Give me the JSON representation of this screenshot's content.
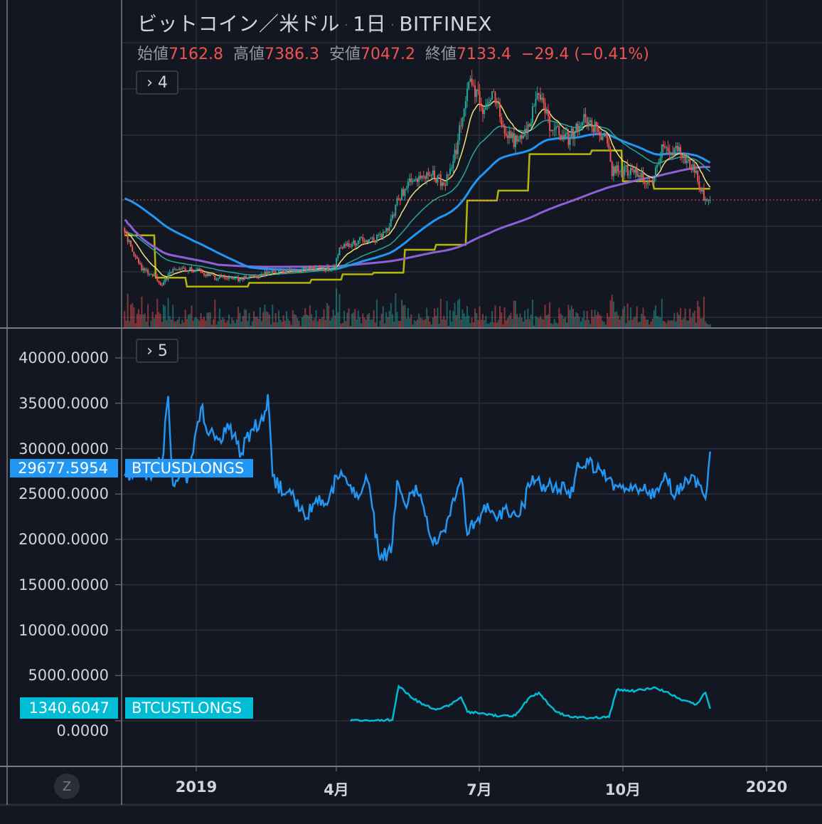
{
  "header": {
    "symbol": "ビットコイン／米ドル",
    "interval": "1日",
    "exchange": "BITFINEX",
    "open_label": "始値",
    "open": "7162.8",
    "high_label": "高値",
    "high": "7386.3",
    "low_label": "安値",
    "low": "7047.2",
    "close_label": "終値",
    "close": "7133.4",
    "change": "−29.4 (−0.41%)"
  },
  "panes": {
    "price_collapse": "› 4",
    "longs_collapse": "› 5"
  },
  "colors": {
    "background": "#131722",
    "up": "#26a69a",
    "down": "#ef5350",
    "ma20": "#f3e27a",
    "ma50": "#26a69a",
    "ma100": "#2196f3",
    "ma200": "#8e5fd6",
    "stepline": "#b5b50a",
    "btcusdlongs": "#2196f3",
    "btcustlongs": "#00bcd4"
  },
  "time_axis": {
    "labels": [
      "2019",
      "4月",
      "7月",
      "10月",
      "2020"
    ],
    "zoom_button": "Z"
  },
  "chart_data": [
    {
      "type": "candlestick",
      "title": "ビットコイン／米ドル · 1日 · BITFINEX",
      "last_close": 7133.4,
      "overlays": [
        "MA short (yellow)",
        "MA (teal)",
        "MA (blue)",
        "MA long (purple)",
        "step line (olive)",
        "volume"
      ],
      "closes": [
        [
          "2018-11-16",
          5800
        ],
        [
          "2018-11-20",
          4790
        ],
        [
          "2018-11-26",
          3940
        ],
        [
          "2018-12-03",
          3600
        ],
        [
          "2018-12-10",
          3100
        ],
        [
          "2018-12-17",
          3830
        ],
        [
          "2018-12-24",
          3830
        ],
        [
          "2019-01-01",
          3770
        ],
        [
          "2019-01-12",
          3430
        ],
        [
          "2019-01-26",
          3360
        ],
        [
          "2019-02-08",
          3430
        ],
        [
          "2019-02-18",
          3700
        ],
        [
          "2019-03-03",
          3770
        ],
        [
          "2019-03-17",
          3830
        ],
        [
          "2019-03-31",
          3940
        ],
        [
          "2019-04-03",
          4960
        ],
        [
          "2019-04-18",
          5200
        ],
        [
          "2019-04-27",
          5300
        ],
        [
          "2019-05-04",
          5800
        ],
        [
          "2019-05-11",
          7170
        ],
        [
          "2019-05-18",
          8010
        ],
        [
          "2019-05-30",
          8530
        ],
        [
          "2019-06-10",
          7850
        ],
        [
          "2019-06-17",
          9550
        ],
        [
          "2019-06-23",
          12270
        ],
        [
          "2019-06-27",
          12950
        ],
        [
          "2019-07-04",
          11250
        ],
        [
          "2019-07-11",
          12270
        ],
        [
          "2019-07-18",
          10230
        ],
        [
          "2019-07-27",
          9890
        ],
        [
          "2019-08-03",
          10900
        ],
        [
          "2019-08-09",
          12100
        ],
        [
          "2019-08-17",
          10570
        ],
        [
          "2019-08-28",
          10060
        ],
        [
          "2019-09-06",
          10900
        ],
        [
          "2019-09-15",
          10570
        ],
        [
          "2019-09-22",
          9890
        ],
        [
          "2019-09-25",
          8530
        ],
        [
          "2019-10-03",
          8530
        ],
        [
          "2019-10-12",
          8360
        ],
        [
          "2019-10-21",
          7850
        ],
        [
          "2019-10-27",
          9720
        ],
        [
          "2019-11-04",
          9550
        ],
        [
          "2019-11-11",
          9210
        ],
        [
          "2019-11-18",
          8360
        ],
        [
          "2019-11-23",
          7340
        ],
        [
          "2019-11-27",
          7133.4
        ]
      ]
    },
    {
      "type": "line",
      "yticks": [
        "40000.0000",
        "35000.0000",
        "30000.0000",
        "25000.0000",
        "20000.0000",
        "15000.0000",
        "10000.0000",
        "5000.0000",
        "0.0000"
      ],
      "ylim": [
        0,
        40000
      ],
      "series": [
        {
          "name": "BTCUSDLONGS",
          "last_value": "29677.5954",
          "points": [
            [
              "2018-11-16",
              27000
            ],
            [
              "2018-11-25",
              28000
            ],
            [
              "2018-12-02",
              27200
            ],
            [
              "2018-12-10",
              28500
            ],
            [
              "2018-12-14",
              35800
            ],
            [
              "2018-12-17",
              26000
            ],
            [
              "2018-12-22",
              27500
            ],
            [
              "2018-12-26",
              26200
            ],
            [
              "2018-12-30",
              29500
            ],
            [
              "2019-01-04",
              34500
            ],
            [
              "2019-01-09",
              31500
            ],
            [
              "2019-01-15",
              31000
            ],
            [
              "2019-01-22",
              32200
            ],
            [
              "2019-01-30",
              29500
            ],
            [
              "2019-02-05",
              32000
            ],
            [
              "2019-02-13",
              33000
            ],
            [
              "2019-02-16",
              36000
            ],
            [
              "2019-02-19",
              27000
            ],
            [
              "2019-02-26",
              25000
            ],
            [
              "2019-03-05",
              24500
            ],
            [
              "2019-03-12",
              22200
            ],
            [
              "2019-03-19",
              24500
            ],
            [
              "2019-03-26",
              23800
            ],
            [
              "2019-04-01",
              27000
            ],
            [
              "2019-04-10",
              26000
            ],
            [
              "2019-04-15",
              24500
            ],
            [
              "2019-04-20",
              27000
            ],
            [
              "2019-04-24",
              23500
            ],
            [
              "2019-04-28",
              18500
            ],
            [
              "2019-05-06",
              18500
            ],
            [
              "2019-05-10",
              26500
            ],
            [
              "2019-05-16",
              23500
            ],
            [
              "2019-05-22",
              26000
            ],
            [
              "2019-05-29",
              22500
            ],
            [
              "2019-06-02",
              19500
            ],
            [
              "2019-06-09",
              21000
            ],
            [
              "2019-06-15",
              24500
            ],
            [
              "2019-06-20",
              26800
            ],
            [
              "2019-06-24",
              20500
            ],
            [
              "2019-06-30",
              22000
            ],
            [
              "2019-07-07",
              24000
            ],
            [
              "2019-07-14",
              22500
            ],
            [
              "2019-07-20",
              23000
            ],
            [
              "2019-07-27",
              22500
            ],
            [
              "2019-08-03",
              25800
            ],
            [
              "2019-08-07",
              26500
            ],
            [
              "2019-08-14",
              25800
            ],
            [
              "2019-08-22",
              25500
            ],
            [
              "2019-08-31",
              25200
            ],
            [
              "2019-09-03",
              28500
            ],
            [
              "2019-09-10",
              28400
            ],
            [
              "2019-09-18",
              27600
            ],
            [
              "2019-09-26",
              25400
            ],
            [
              "2019-10-05",
              25500
            ],
            [
              "2019-10-15",
              25400
            ],
            [
              "2019-10-25",
              25300
            ],
            [
              "2019-10-30",
              26800
            ],
            [
              "2019-11-05",
              25000
            ],
            [
              "2019-11-12",
              26600
            ],
            [
              "2019-11-20",
              26000
            ],
            [
              "2019-11-24",
              24500
            ],
            [
              "2019-11-27",
              29677.5954
            ]
          ]
        },
        {
          "name": "BTCUSTLONGS",
          "last_value": "1340.6047",
          "points": [
            [
              "2019-04-10",
              0
            ],
            [
              "2019-04-25",
              0
            ],
            [
              "2019-05-07",
              100
            ],
            [
              "2019-05-11",
              3800
            ],
            [
              "2019-05-18",
              2800
            ],
            [
              "2019-05-26",
              1800
            ],
            [
              "2019-06-03",
              1300
            ],
            [
              "2019-06-12",
              1600
            ],
            [
              "2019-06-20",
              2600
            ],
            [
              "2019-06-24",
              1000
            ],
            [
              "2019-07-05",
              800
            ],
            [
              "2019-07-15",
              500
            ],
            [
              "2019-07-25",
              600
            ],
            [
              "2019-08-03",
              2600
            ],
            [
              "2019-08-09",
              3100
            ],
            [
              "2019-08-20",
              1000
            ],
            [
              "2019-08-30",
              400
            ],
            [
              "2019-09-10",
              300
            ],
            [
              "2019-09-23",
              400
            ],
            [
              "2019-09-28",
              3400
            ],
            [
              "2019-10-10",
              3300
            ],
            [
              "2019-10-22",
              3700
            ],
            [
              "2019-10-30",
              3200
            ],
            [
              "2019-11-06",
              2500
            ],
            [
              "2019-11-18",
              1800
            ],
            [
              "2019-11-24",
              3100
            ],
            [
              "2019-11-27",
              1340.6047
            ]
          ]
        }
      ]
    }
  ]
}
